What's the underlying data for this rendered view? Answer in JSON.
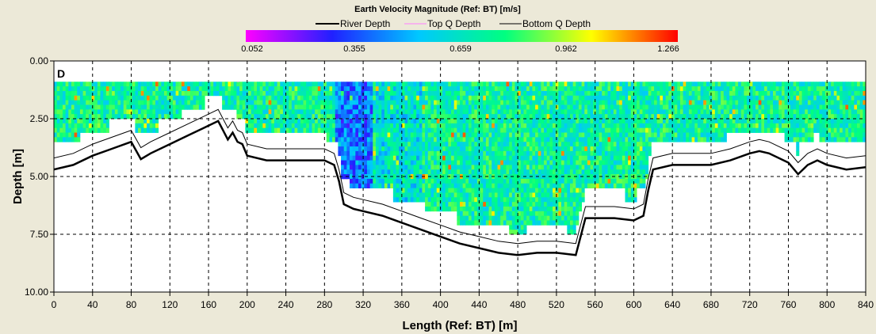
{
  "chart_data": {
    "type": "heatmap",
    "title": "Earth Velocity Magnitude (Ref: BT) [m/s]",
    "xlabel": "Length (Ref: BT) [m]",
    "ylabel": "Depth [m]",
    "panel_label": "D",
    "xlim": [
      0,
      840
    ],
    "ylim": [
      10.0,
      0.0
    ],
    "x_ticks": [
      "0",
      "40",
      "80",
      "120",
      "160",
      "200",
      "240",
      "280",
      "320",
      "360",
      "400",
      "440",
      "480",
      "520",
      "560",
      "600",
      "640",
      "680",
      "720",
      "760",
      "800",
      "840"
    ],
    "x_tick_values": [
      0,
      40,
      80,
      120,
      160,
      200,
      240,
      280,
      320,
      360,
      400,
      440,
      480,
      520,
      560,
      600,
      640,
      680,
      720,
      760,
      800,
      840
    ],
    "y_ticks": [
      "0.00",
      "2.50",
      "5.00",
      "7.50",
      "10.00"
    ],
    "y_tick_values": [
      0.0,
      2.5,
      5.0,
      7.5,
      10.0
    ],
    "grid": true,
    "legend_position": "top-center",
    "colorbar": {
      "ticks": [
        "0.052",
        "0.355",
        "0.659",
        "0.962",
        "1.266"
      ],
      "min": 0.052,
      "max": 1.266,
      "colors": [
        "#ff00ff",
        "#2020ff",
        "#00c8ff",
        "#00ff80",
        "#ffff00",
        "#ff0000"
      ]
    },
    "series": [
      {
        "name": "River Depth",
        "color": "#000000",
        "x": [
          0,
          20,
          40,
          60,
          80,
          90,
          100,
          120,
          140,
          160,
          170,
          175,
          180,
          185,
          190,
          195,
          200,
          220,
          240,
          260,
          270,
          280,
          290,
          295,
          300,
          310,
          320,
          340,
          360,
          380,
          400,
          420,
          440,
          460,
          480,
          500,
          520,
          540,
          545,
          550,
          560,
          580,
          600,
          610,
          615,
          620,
          640,
          660,
          680,
          700,
          720,
          730,
          740,
          760,
          770,
          780,
          790,
          800,
          820,
          840
        ],
        "y": [
          4.7,
          4.5,
          4.1,
          3.8,
          3.5,
          4.25,
          4.0,
          3.6,
          3.2,
          2.8,
          2.6,
          3.0,
          3.4,
          3.1,
          3.5,
          3.6,
          4.1,
          4.3,
          4.3,
          4.3,
          4.3,
          4.3,
          4.5,
          5.2,
          6.2,
          6.4,
          6.5,
          6.7,
          7.0,
          7.3,
          7.6,
          7.9,
          8.1,
          8.3,
          8.4,
          8.3,
          8.3,
          8.4,
          7.6,
          6.8,
          6.8,
          6.8,
          6.9,
          6.7,
          5.6,
          4.7,
          4.5,
          4.5,
          4.5,
          4.3,
          4.0,
          3.9,
          4.0,
          4.4,
          4.9,
          4.5,
          4.3,
          4.5,
          4.7,
          4.6
        ]
      },
      {
        "name": "Top Q Depth",
        "color": "#ff80ff",
        "x": [
          190,
          191
        ],
        "y": [
          0.9,
          0.9
        ]
      },
      {
        "name": "Bottom Q Depth",
        "color": "#000000",
        "x": [
          0,
          20,
          40,
          60,
          80,
          90,
          100,
          120,
          140,
          160,
          170,
          175,
          180,
          185,
          190,
          195,
          200,
          220,
          240,
          260,
          270,
          280,
          290,
          295,
          300,
          310,
          320,
          340,
          360,
          380,
          400,
          420,
          440,
          460,
          480,
          500,
          520,
          540,
          545,
          550,
          560,
          580,
          600,
          610,
          615,
          620,
          640,
          660,
          680,
          700,
          720,
          730,
          740,
          760,
          770,
          780,
          790,
          800,
          820,
          840
        ],
        "y": [
          4.2,
          4.0,
          3.6,
          3.3,
          3.0,
          3.75,
          3.5,
          3.1,
          2.7,
          2.3,
          2.1,
          2.5,
          2.9,
          2.6,
          3.0,
          3.1,
          3.6,
          3.8,
          3.8,
          3.8,
          3.8,
          3.8,
          4.0,
          4.7,
          5.7,
          5.9,
          6.0,
          6.2,
          6.5,
          6.8,
          7.1,
          7.4,
          7.6,
          7.8,
          7.9,
          7.8,
          7.8,
          7.9,
          7.1,
          6.3,
          6.3,
          6.3,
          6.4,
          6.2,
          5.1,
          4.2,
          4.0,
          4.0,
          4.0,
          3.8,
          3.5,
          3.4,
          3.5,
          3.9,
          4.4,
          4.0,
          3.8,
          4.0,
          4.2,
          4.1
        ]
      }
    ]
  }
}
